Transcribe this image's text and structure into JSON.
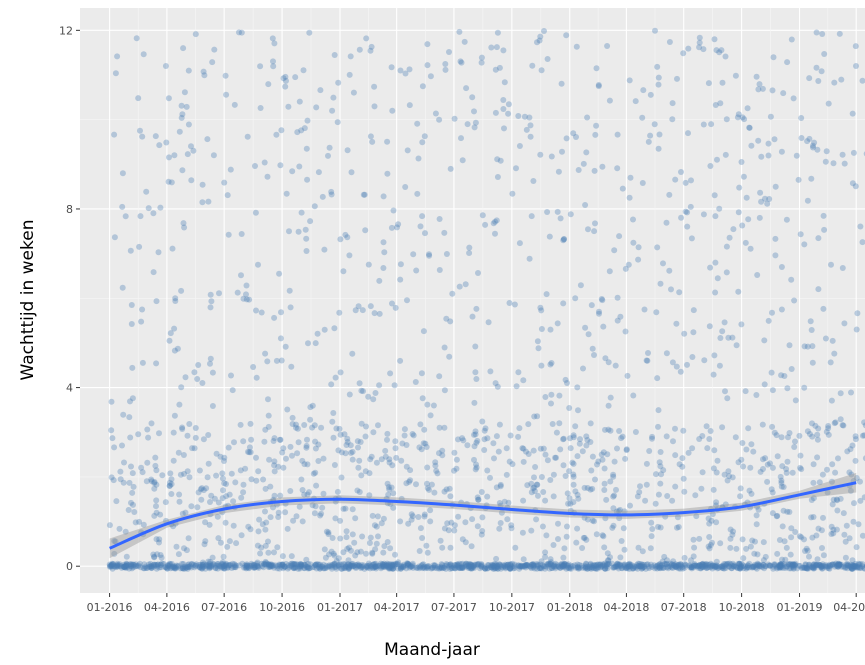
{
  "chart_data": {
    "type": "scatter",
    "xlabel": "Maand-jaar",
    "ylabel": "Wachttijd in weken",
    "x_ticks": [
      "01-2016",
      "04-2016",
      "07-2016",
      "10-2016",
      "01-2017",
      "04-2017",
      "07-2017",
      "10-2017",
      "01-2018",
      "04-2018",
      "07-2018",
      "10-2018",
      "01-2019",
      "04-2019"
    ],
    "y_ticks": [
      "0",
      "4",
      "8",
      "12"
    ],
    "xlim": [
      "2015-11-15",
      "2019-04-15"
    ],
    "ylim": [
      -0.6,
      12.5
    ],
    "background": "grey-grid",
    "point_color": "#4a7fb5",
    "point_opacity": 0.35,
    "smooth_color": "#3366ff",
    "smooth_band_color": "#999999",
    "smooth": [
      {
        "x": "2016-01-01",
        "y": 0.4
      },
      {
        "x": "2016-04-01",
        "y": 0.95
      },
      {
        "x": "2016-07-01",
        "y": 1.28
      },
      {
        "x": "2016-10-01",
        "y": 1.45
      },
      {
        "x": "2017-01-01",
        "y": 1.5
      },
      {
        "x": "2017-04-01",
        "y": 1.45
      },
      {
        "x": "2017-07-01",
        "y": 1.37
      },
      {
        "x": "2017-10-01",
        "y": 1.27
      },
      {
        "x": "2018-01-01",
        "y": 1.18
      },
      {
        "x": "2018-04-01",
        "y": 1.15
      },
      {
        "x": "2018-07-01",
        "y": 1.2
      },
      {
        "x": "2018-10-01",
        "y": 1.33
      },
      {
        "x": "2019-01-01",
        "y": 1.6
      },
      {
        "x": "2019-04-01",
        "y": 1.87
      }
    ]
  }
}
